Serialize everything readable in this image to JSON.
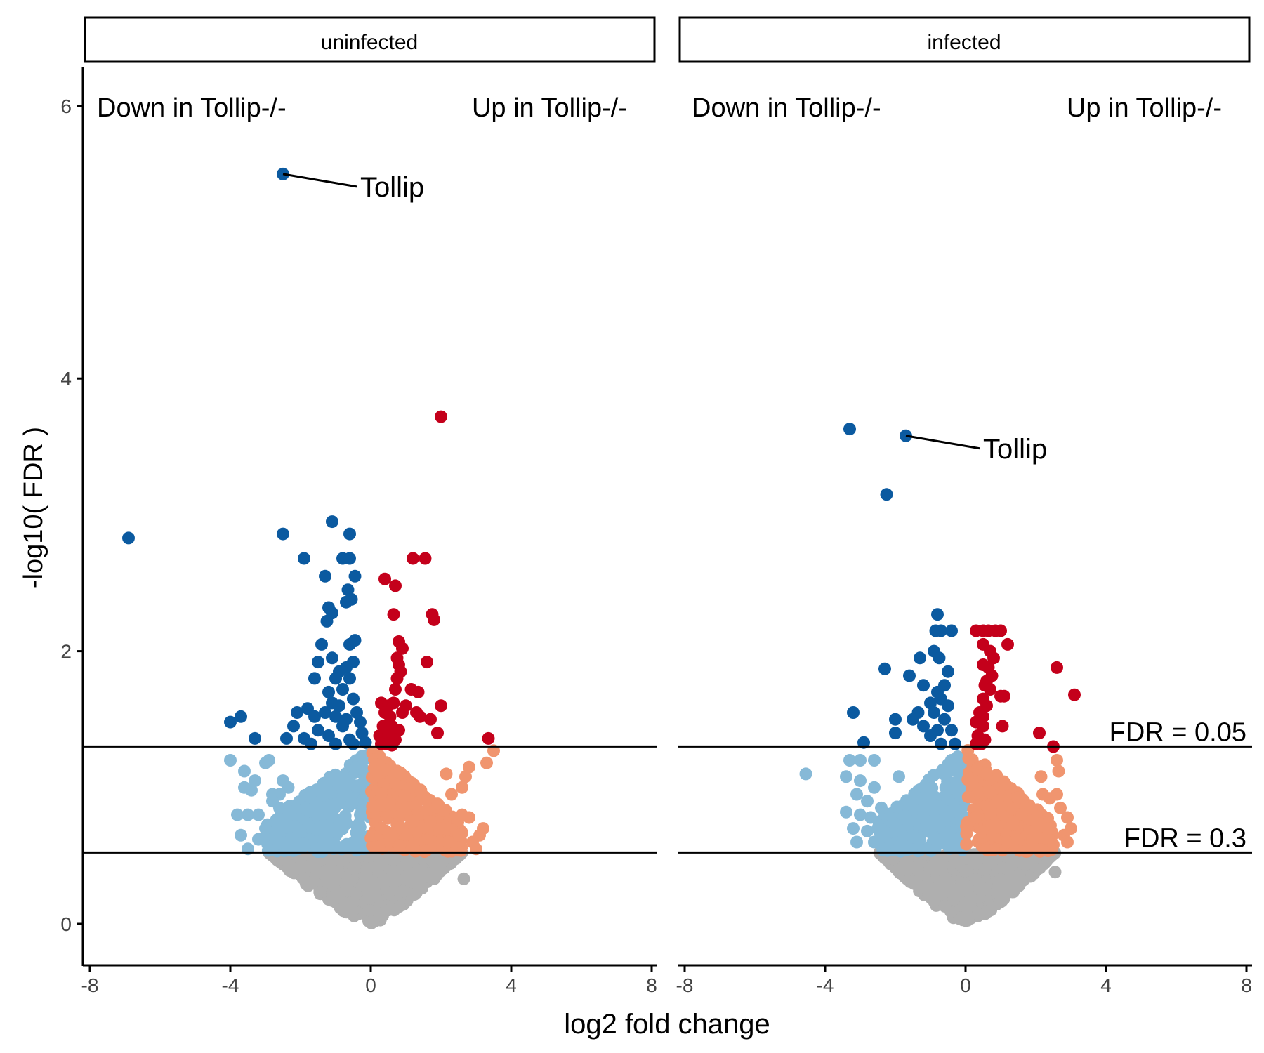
{
  "chart_data": {
    "type": "scatter",
    "xlabel": "log2 fold change",
    "ylabel": "-log10( FDR )",
    "xlim": [
      -8,
      8
    ],
    "ylim": [
      -0.25,
      6.3
    ],
    "x_ticks": [
      "-8",
      "-4",
      "0",
      "4",
      "8"
    ],
    "y_ticks": [
      "0",
      "2",
      "4",
      "6"
    ],
    "colors": {
      "up_sig": "#c4001b",
      "up_trend": "#f0956f",
      "down_sig": "#0b5aa0",
      "down_trend": "#86b9d7",
      "not_sig": "#afafaf"
    },
    "thresholds": [
      {
        "label": "FDR = 0.05",
        "y": 1.301
      },
      {
        "label": "FDR = 0.3",
        "y": 0.523
      }
    ],
    "panels": [
      {
        "strip": "uninfected",
        "down_label": "Down in Tollip-/-",
        "up_label": "Up in Tollip-/-",
        "highlight": {
          "label": "Tollip",
          "x": -2.5,
          "y": 5.5
        },
        "show_threshold_labels": false,
        "points": {
          "down_sig": [
            [
              -6.9,
              2.83
            ],
            [
              -2.5,
              2.86
            ],
            [
              -1.1,
              2.95
            ],
            [
              -0.6,
              2.86
            ],
            [
              -1.9,
              2.68
            ],
            [
              -0.8,
              2.68
            ],
            [
              -0.6,
              2.68
            ],
            [
              -1.3,
              2.55
            ],
            [
              -0.45,
              2.55
            ],
            [
              -0.65,
              2.45
            ],
            [
              -0.55,
              2.38
            ],
            [
              -1.2,
              2.32
            ],
            [
              -1.1,
              2.28
            ],
            [
              -1.25,
              2.22
            ],
            [
              -0.7,
              2.36
            ],
            [
              -1.4,
              2.05
            ],
            [
              -0.6,
              2.05
            ],
            [
              -0.45,
              2.08
            ],
            [
              -1.5,
              1.92
            ],
            [
              -1.1,
              1.95
            ],
            [
              -0.5,
              1.92
            ],
            [
              -0.7,
              1.88
            ],
            [
              -0.9,
              1.85
            ],
            [
              -1.6,
              1.8
            ],
            [
              -1.0,
              1.8
            ],
            [
              -0.6,
              1.8
            ],
            [
              -1.2,
              1.7
            ],
            [
              -0.8,
              1.72
            ],
            [
              -1.1,
              1.62
            ],
            [
              -0.5,
              1.65
            ],
            [
              -0.9,
              1.6
            ],
            [
              -1.8,
              1.58
            ],
            [
              -2.1,
              1.55
            ],
            [
              -1.3,
              1.55
            ],
            [
              -1.6,
              1.52
            ],
            [
              -0.4,
              1.55
            ],
            [
              -1.0,
              1.52
            ],
            [
              -0.7,
              1.5
            ],
            [
              -3.7,
              1.52
            ],
            [
              -4.0,
              1.48
            ],
            [
              -2.2,
              1.45
            ],
            [
              -1.5,
              1.42
            ],
            [
              -0.8,
              1.45
            ],
            [
              -0.3,
              1.48
            ],
            [
              -3.3,
              1.36
            ],
            [
              -2.4,
              1.36
            ],
            [
              -1.9,
              1.36
            ],
            [
              -1.2,
              1.38
            ],
            [
              -0.6,
              1.35
            ],
            [
              -0.25,
              1.4
            ],
            [
              -1.7,
              1.32
            ],
            [
              -1.0,
              1.32
            ],
            [
              -0.5,
              1.32
            ],
            [
              -0.15,
              1.33
            ]
          ],
          "up_sig": [
            [
              2.0,
              3.72
            ],
            [
              1.2,
              2.68
            ],
            [
              1.55,
              2.68
            ],
            [
              0.4,
              2.53
            ],
            [
              0.7,
              2.48
            ],
            [
              1.75,
              2.27
            ],
            [
              1.8,
              2.23
            ],
            [
              0.65,
              2.27
            ],
            [
              1.6,
              1.92
            ],
            [
              0.8,
              2.07
            ],
            [
              0.9,
              2.02
            ],
            [
              0.75,
              1.95
            ],
            [
              0.8,
              1.9
            ],
            [
              0.85,
              1.85
            ],
            [
              0.75,
              1.8
            ],
            [
              1.15,
              1.72
            ],
            [
              1.35,
              1.7
            ],
            [
              0.7,
              1.72
            ],
            [
              0.3,
              1.62
            ],
            [
              0.5,
              1.6
            ],
            [
              0.65,
              1.62
            ],
            [
              1.0,
              1.6
            ],
            [
              2.0,
              1.6
            ],
            [
              0.4,
              1.55
            ],
            [
              0.55,
              1.52
            ],
            [
              0.9,
              1.55
            ],
            [
              1.3,
              1.55
            ],
            [
              1.7,
              1.5
            ],
            [
              0.35,
              1.45
            ],
            [
              0.6,
              1.45
            ],
            [
              0.8,
              1.42
            ],
            [
              1.4,
              1.52
            ],
            [
              0.25,
              1.38
            ],
            [
              0.5,
              1.38
            ],
            [
              0.7,
              1.35
            ],
            [
              1.9,
              1.4
            ],
            [
              3.35,
              1.36
            ],
            [
              0.3,
              1.32
            ],
            [
              0.45,
              1.32
            ],
            [
              0.6,
              1.31
            ]
          ],
          "down_trend": [
            [
              -4.0,
              1.2
            ],
            [
              -3.0,
              1.18
            ],
            [
              -2.9,
              1.2
            ],
            [
              -3.6,
              1.12
            ],
            [
              -3.3,
              1.05
            ],
            [
              -3.6,
              1.0
            ],
            [
              -3.4,
              0.98
            ],
            [
              -2.5,
              1.05
            ],
            [
              -2.35,
              1.0
            ],
            [
              -2.6,
              0.95
            ],
            [
              -2.8,
              0.95
            ],
            [
              -3.5,
              0.8
            ],
            [
              -3.8,
              0.8
            ],
            [
              -3.2,
              0.8
            ],
            [
              -2.8,
              0.9
            ],
            [
              -2.6,
              0.85
            ],
            [
              -3.7,
              0.65
            ],
            [
              -3.0,
              0.7
            ],
            [
              -2.6,
              0.68
            ],
            [
              -2.3,
              0.6
            ],
            [
              -3.5,
              0.55
            ],
            [
              -3.2,
              0.62
            ],
            [
              -2.9,
              0.55
            ]
          ],
          "up_trend": [
            [
              3.5,
              1.27
            ],
            [
              3.3,
              1.18
            ],
            [
              2.8,
              1.15
            ],
            [
              2.7,
              1.08
            ],
            [
              2.6,
              1.0
            ],
            [
              2.15,
              1.1
            ],
            [
              2.3,
              0.95
            ],
            [
              1.9,
              0.88
            ],
            [
              2.6,
              0.8
            ],
            [
              2.8,
              0.78
            ],
            [
              3.1,
              0.65
            ],
            [
              3.2,
              0.7
            ],
            [
              2.5,
              0.65
            ],
            [
              2.2,
              0.6
            ],
            [
              2.9,
              0.6
            ],
            [
              3.0,
              0.55
            ],
            [
              2.0,
              0.7
            ],
            [
              1.7,
              0.75
            ]
          ],
          "not_sig": [
            [
              2.65,
              0.33
            ]
          ]
        },
        "cloud": {
          "down_trend": [
            -3.0,
            0
          ],
          "up_trend": [
            0,
            2.6
          ],
          "not_sig": [
            -2.9,
            2.6
          ]
        }
      },
      {
        "strip": "infected",
        "down_label": "Down in Tollip-/-",
        "up_label": "Up in Tollip-/-",
        "highlight": {
          "label": "Tollip",
          "x": -1.7,
          "y": 3.58
        },
        "show_threshold_labels": true,
        "points": {
          "down_sig": [
            [
              -3.3,
              3.63
            ],
            [
              -2.25,
              3.15
            ],
            [
              -0.8,
              2.27
            ],
            [
              -0.85,
              2.15
            ],
            [
              -0.7,
              2.15
            ],
            [
              -0.4,
              2.15
            ],
            [
              -1.3,
              1.95
            ],
            [
              -0.9,
              2.0
            ],
            [
              -0.75,
              1.95
            ],
            [
              -2.3,
              1.87
            ],
            [
              -1.6,
              1.82
            ],
            [
              -0.5,
              1.85
            ],
            [
              -1.2,
              1.75
            ],
            [
              -0.6,
              1.75
            ],
            [
              -0.8,
              1.7
            ],
            [
              -0.7,
              1.65
            ],
            [
              -1.0,
              1.62
            ],
            [
              -0.5,
              1.6
            ],
            [
              -3.2,
              1.55
            ],
            [
              -1.35,
              1.55
            ],
            [
              -0.9,
              1.55
            ],
            [
              -2.0,
              1.5
            ],
            [
              -1.5,
              1.5
            ],
            [
              -0.6,
              1.5
            ],
            [
              -2.0,
              1.4
            ],
            [
              -1.2,
              1.45
            ],
            [
              -0.8,
              1.42
            ],
            [
              -0.4,
              1.42
            ],
            [
              -1.0,
              1.38
            ],
            [
              -2.9,
              1.33
            ],
            [
              -0.7,
              1.32
            ],
            [
              -0.3,
              1.32
            ]
          ],
          "up_sig": [
            [
              0.3,
              2.15
            ],
            [
              0.5,
              2.15
            ],
            [
              0.65,
              2.15
            ],
            [
              0.85,
              2.15
            ],
            [
              1.0,
              2.15
            ],
            [
              1.2,
              2.05
            ],
            [
              0.5,
              2.05
            ],
            [
              0.7,
              2.0
            ],
            [
              0.8,
              1.95
            ],
            [
              0.5,
              1.9
            ],
            [
              0.65,
              1.88
            ],
            [
              0.75,
              1.82
            ],
            [
              0.6,
              1.78
            ],
            [
              0.55,
              1.75
            ],
            [
              0.7,
              1.72
            ],
            [
              1.0,
              1.67
            ],
            [
              1.1,
              1.67
            ],
            [
              2.6,
              1.88
            ],
            [
              3.1,
              1.68
            ],
            [
              0.5,
              1.65
            ],
            [
              0.6,
              1.6
            ],
            [
              0.4,
              1.55
            ],
            [
              0.5,
              1.52
            ],
            [
              0.3,
              1.48
            ],
            [
              1.05,
              1.45
            ],
            [
              0.5,
              1.45
            ],
            [
              2.1,
              1.4
            ],
            [
              2.5,
              1.3
            ],
            [
              0.35,
              1.38
            ],
            [
              0.55,
              1.35
            ],
            [
              0.3,
              1.32
            ],
            [
              0.45,
              1.32
            ]
          ],
          "down_trend": [
            [
              -4.55,
              1.1
            ],
            [
              -3.3,
              1.2
            ],
            [
              -3.0,
              1.2
            ],
            [
              -2.6,
              1.2
            ],
            [
              -3.4,
              1.08
            ],
            [
              -3.0,
              1.05
            ],
            [
              -2.6,
              1.0
            ],
            [
              -1.9,
              1.08
            ],
            [
              -3.1,
              0.95
            ],
            [
              -2.8,
              0.9
            ],
            [
              -3.4,
              0.82
            ],
            [
              -3.0,
              0.8
            ],
            [
              -2.7,
              0.78
            ],
            [
              -2.4,
              0.85
            ],
            [
              -3.2,
              0.7
            ],
            [
              -2.8,
              0.68
            ],
            [
              -3.1,
              0.6
            ],
            [
              -2.6,
              0.6
            ],
            [
              -2.3,
              0.65
            ]
          ],
          "up_trend": [
            [
              2.6,
              1.2
            ],
            [
              2.65,
              1.12
            ],
            [
              2.15,
              1.08
            ],
            [
              2.2,
              0.95
            ],
            [
              2.4,
              0.92
            ],
            [
              2.6,
              0.95
            ],
            [
              2.7,
              0.85
            ],
            [
              2.9,
              0.78
            ],
            [
              3.0,
              0.7
            ],
            [
              2.8,
              0.65
            ],
            [
              2.4,
              0.7
            ],
            [
              2.9,
              0.6
            ],
            [
              2.5,
              0.58
            ]
          ],
          "not_sig": [
            [
              2.55,
              0.38
            ]
          ]
        },
        "cloud": {
          "down_trend": [
            -2.5,
            0
          ],
          "up_trend": [
            0,
            2.5
          ],
          "not_sig": [
            -2.45,
            2.55
          ]
        }
      }
    ]
  }
}
